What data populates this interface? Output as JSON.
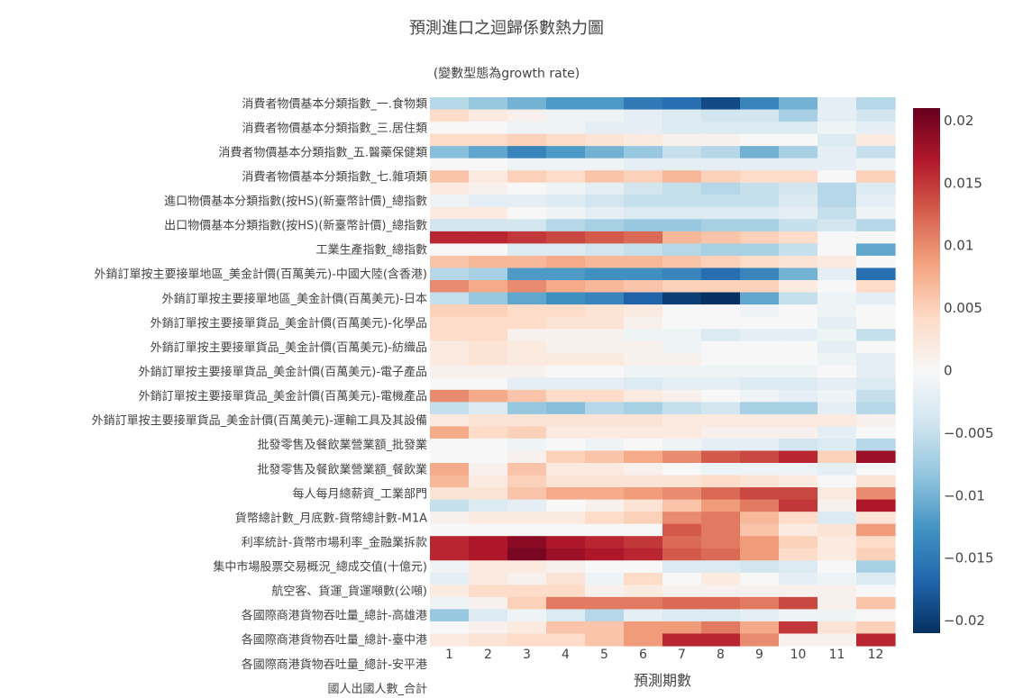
{
  "chart_data": {
    "type": "heatmap",
    "title": "預測進口之迴歸係數熱力圖",
    "subtitle": "(變數型態為growth rate)",
    "xlabel": "預測期數",
    "ylabel": "",
    "x": [
      1,
      2,
      3,
      4,
      5,
      6,
      7,
      8,
      9,
      10,
      11,
      12
    ],
    "colorscale": "RdBu_r",
    "zlim": [
      -0.021,
      0.021
    ],
    "colorbar_ticks": [
      "0.02",
      "0.015",
      "0.01",
      "0.005",
      "0",
      "−0.005",
      "−0.01",
      "−0.015",
      "−0.02"
    ],
    "colorbar_tick_values": [
      0.02,
      0.015,
      0.01,
      0.005,
      0,
      -0.005,
      -0.01,
      -0.015,
      -0.02
    ],
    "y_tick_labels": [
      "消費者物價基本分類指數_一.食物類",
      "消費者物價基本分類指數_三.居住類",
      "消費者物價基本分類指數_五.醫藥保健類",
      "消費者物價基本分類指數_七.雜項類",
      "進口物價基本分類指數(按HS)(新臺幣計價)_總指數",
      "出口物價基本分類指數(按HS)(新臺幣計價)_總指數",
      "工業生產指數_總指數",
      "外銷訂單按主要接單地區_美金計價(百萬美元)-中國大陸(含香港)",
      "外銷訂單按主要接單地區_美金計價(百萬美元)-日本",
      "外銷訂單按主要接單貨品_美金計價(百萬美元)-化學品",
      "外銷訂單按主要接單貨品_美金計價(百萬美元)-紡織品",
      "外銷訂單按主要接單貨品_美金計價(百萬美元)-電子產品",
      "外銷訂單按主要接單貨品_美金計價(百萬美元)-電機產品",
      "外銷訂單按主要接單貨品_美金計價(百萬美元)-運輸工具及其設備",
      "批發零售及餐飲業營業額_批發業",
      "批發零售及餐飲業營業額_餐飲業",
      "每人每月總薪資_工業部門",
      "貨幣總計數_月底數-貨幣總計數-M1A",
      "利率統計-貨幣市場利率_金融業拆款",
      "集中市場股票交易概況_總成交值(十億元)",
      "航空客、貨運_貨運噸數(公噸)",
      "各國際商港貨物吞吐量_總計-高雄港",
      "各國際商港貨物吞吐量_總計-臺中港",
      "各國際商港貨物吞吐量_總計-安平港",
      "國人出國人數_合計"
    ],
    "z": [
      [
        -0.006,
        -0.008,
        -0.01,
        -0.012,
        -0.012,
        -0.015,
        -0.016,
        -0.019,
        -0.014,
        -0.01,
        -0.002,
        -0.006
      ],
      [
        0.004,
        0.002,
        0.001,
        -0.001,
        -0.001,
        -0.002,
        -0.003,
        -0.004,
        -0.004,
        -0.007,
        -0.002,
        -0.004
      ],
      [
        0,
        0,
        -0.001,
        -0.001,
        -0.002,
        -0.002,
        -0.003,
        -0.003,
        -0.003,
        -0.003,
        -0.001,
        -0.002
      ],
      [
        0.004,
        0.004,
        0.005,
        0.004,
        0.003,
        0.002,
        0.001,
        0.001,
        0,
        0,
        -0.003,
        0.002
      ],
      [
        -0.009,
        -0.011,
        -0.014,
        -0.012,
        -0.01,
        -0.008,
        -0.005,
        -0.006,
        -0.01,
        -0.007,
        -0.002,
        -0.005
      ],
      [
        0,
        0,
        -0.001,
        -0.001,
        -0.001,
        -0.002,
        -0.002,
        -0.002,
        -0.002,
        -0.002,
        -0.002,
        -0.001
      ],
      [
        0.006,
        0.002,
        0.005,
        0.004,
        0.006,
        0.005,
        0.007,
        0.005,
        0.004,
        0.004,
        0,
        0.005
      ],
      [
        0.002,
        0.001,
        0,
        -0.001,
        -0.002,
        -0.004,
        -0.005,
        -0.006,
        -0.005,
        -0.004,
        -0.006,
        -0.003
      ],
      [
        -0.001,
        -0.002,
        -0.002,
        -0.003,
        -0.004,
        -0.005,
        -0.005,
        -0.005,
        -0.005,
        -0.003,
        -0.006,
        -0.002
      ],
      [
        0.002,
        0.002,
        0,
        -0.001,
        -0.002,
        -0.003,
        -0.003,
        -0.003,
        -0.003,
        -0.002,
        -0.005,
        -0.001
      ],
      [
        -0.004,
        -0.004,
        -0.004,
        -0.006,
        -0.007,
        -0.008,
        -0.008,
        -0.007,
        -0.007,
        -0.005,
        -0.004,
        -0.006
      ],
      [
        0.016,
        0.016,
        0.015,
        0.014,
        0.013,
        0.012,
        0.007,
        0.006,
        0.005,
        0.004,
        0,
        0
      ],
      [
        0,
        0,
        -0.003,
        -0.003,
        -0.004,
        -0.005,
        -0.006,
        -0.007,
        -0.007,
        -0.005,
        0,
        -0.011
      ],
      [
        0.006,
        0.007,
        0.007,
        0.008,
        0.007,
        0.007,
        0.006,
        0.005,
        0.004,
        0.003,
        0.002,
        0
      ],
      [
        -0.006,
        -0.007,
        -0.012,
        -0.012,
        -0.013,
        -0.013,
        -0.014,
        -0.016,
        -0.014,
        -0.01,
        -0.002,
        -0.016
      ],
      [
        0.01,
        0.008,
        0.01,
        0.008,
        0.007,
        0.006,
        0.005,
        0.005,
        0.005,
        0.002,
        0,
        0.004
      ],
      [
        -0.005,
        -0.008,
        -0.011,
        -0.013,
        -0.014,
        -0.017,
        -0.02,
        -0.021,
        -0.011,
        -0.005,
        -0.001,
        -0.002
      ],
      [
        0.005,
        0.005,
        0.004,
        0.004,
        0.003,
        0.002,
        0,
        0,
        -0.001,
        0,
        -0.001,
        0
      ],
      [
        0.004,
        0.004,
        0.004,
        0.003,
        0.003,
        0.001,
        0,
        0,
        0,
        0,
        -0.002,
        0
      ],
      [
        0.004,
        0.004,
        0.001,
        0.001,
        0.001,
        -0.001,
        -0.001,
        -0.003,
        -0.002,
        -0.002,
        -0.001,
        -0.005
      ],
      [
        0.002,
        0.003,
        0.002,
        0.001,
        0.001,
        0.001,
        -0.001,
        0,
        0,
        0,
        -0.002,
        0
      ],
      [
        0.002,
        0.003,
        0.002,
        0.002,
        0.002,
        0.001,
        0.001,
        0,
        0,
        0,
        -0.001,
        -0.002
      ],
      [
        0.001,
        0.001,
        0.001,
        0,
        0,
        -0.001,
        -0.001,
        -0.001,
        -0.001,
        -0.001,
        0,
        -0.002
      ],
      [
        0,
        0,
        -0.002,
        -0.002,
        -0.002,
        -0.003,
        -0.002,
        -0.002,
        -0.003,
        -0.003,
        -0.002,
        -0.003
      ],
      [
        0.01,
        0.008,
        0.006,
        0.004,
        0.004,
        0.002,
        0.001,
        0,
        -0.001,
        -0.002,
        -0.001,
        -0.005
      ],
      [
        -0.005,
        -0.003,
        -0.008,
        -0.009,
        -0.006,
        -0.007,
        -0.005,
        -0.004,
        -0.007,
        -0.007,
        -0.002,
        -0.006
      ],
      [
        0.002,
        0.003,
        0.003,
        0.003,
        0.003,
        0.003,
        0.002,
        0.002,
        0.002,
        0.002,
        0.002,
        0.001
      ],
      [
        0.008,
        0.004,
        0.005,
        0.002,
        0.002,
        0.002,
        0.002,
        0.001,
        0.001,
        0.001,
        -0.002,
        0
      ],
      [
        0,
        0,
        -0.001,
        0,
        -0.001,
        0,
        -0.001,
        -0.002,
        -0.002,
        -0.004,
        -0.003,
        -0.006
      ],
      [
        0,
        0,
        0.001,
        0.005,
        0.006,
        0.008,
        0.01,
        0.013,
        0.014,
        0.016,
        0.005,
        0.018
      ],
      [
        0.008,
        0.001,
        0.006,
        0.002,
        0.002,
        0.001,
        0,
        -0.001,
        -0.001,
        -0.001,
        -0.002,
        0
      ],
      [
        0.007,
        0.002,
        0.005,
        0.003,
        0.003,
        0.003,
        0.003,
        0.004,
        0.003,
        0.002,
        0,
        0.003
      ],
      [
        0.003,
        0.003,
        0.006,
        0.008,
        0.008,
        0.009,
        0.01,
        0.012,
        0.014,
        0.014,
        0.002,
        0.01
      ],
      [
        -0.005,
        -0.003,
        -0.002,
        0,
        0.001,
        0.003,
        0.006,
        0.009,
        0.011,
        0.015,
        0.001,
        0.017
      ],
      [
        0.001,
        0.002,
        0.002,
        0.002,
        0.004,
        0.005,
        0.01,
        0.011,
        0.007,
        0.004,
        -0.003,
        0.003
      ],
      [
        0,
        0,
        0,
        0,
        0,
        0,
        0.013,
        0.011,
        0.006,
        0.002,
        0.003,
        0.009
      ],
      [
        0.016,
        0.017,
        0.019,
        0.017,
        0.016,
        0.015,
        0.012,
        0.011,
        0.009,
        0.005,
        0.002,
        0.004
      ],
      [
        0.016,
        0.017,
        0.02,
        0.018,
        0.017,
        0.016,
        0.013,
        0.012,
        0.009,
        0.004,
        0.002,
        0.005
      ],
      [
        -0.001,
        0.002,
        0.002,
        0.001,
        0,
        0,
        -0.003,
        -0.003,
        -0.004,
        -0.003,
        0,
        -0.007
      ],
      [
        -0.002,
        0.002,
        0.001,
        0.003,
        -0.001,
        0.004,
        0,
        0.002,
        0,
        -0.002,
        -0.001,
        -0.003
      ],
      [
        0.002,
        0.004,
        0.004,
        0.004,
        0.001,
        0.002,
        0.001,
        0.001,
        0.001,
        0.001,
        0.001,
        0
      ],
      [
        -0.001,
        0.001,
        0.005,
        0.011,
        0.011,
        0.011,
        0.012,
        0.012,
        0.011,
        0.014,
        0.001,
        0.006
      ],
      [
        -0.008,
        -0.003,
        -0.001,
        -0.003,
        -0.006,
        -0.002,
        -0.003,
        -0.003,
        -0.002,
        -0.001,
        -0.001,
        0
      ],
      [
        0,
        0.001,
        0.002,
        0.006,
        0.006,
        0.009,
        0.009,
        0.011,
        0.008,
        0.015,
        0.003,
        0.005
      ],
      [
        0.002,
        0.003,
        0.004,
        0.004,
        0.006,
        0.009,
        0.016,
        0.016,
        0.01,
        0.001,
        0.001,
        0.016
      ]
    ]
  }
}
